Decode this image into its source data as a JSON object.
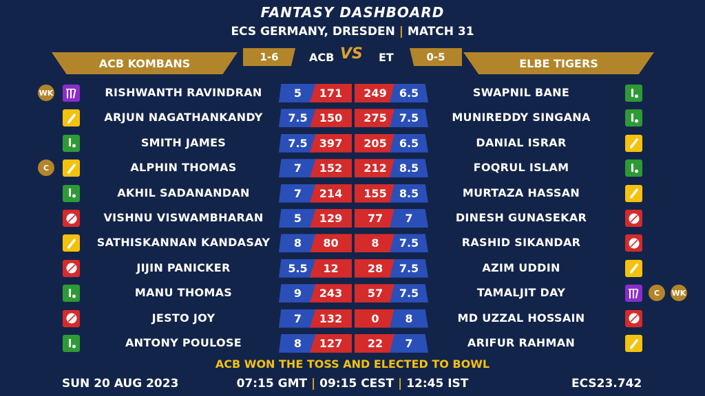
{
  "header": {
    "title": "FANTASY DASHBOARD",
    "subtitle_left": "ECS GERMANY, DRESDEN",
    "subtitle_sep": "|",
    "subtitle_right": "MATCH 31"
  },
  "teams": {
    "left": {
      "name": "ACB KOMBANS",
      "abbr": "ACB",
      "record": "1-6"
    },
    "right": {
      "name": "ELBE TIGERS",
      "abbr": "ET",
      "record": "0-5"
    },
    "vs": "VS"
  },
  "left_players": [
    {
      "name": "RISHWANTH RAVINDRAN",
      "credit": "5",
      "points": "171",
      "role": "wk-icon",
      "badges": [
        "WK"
      ]
    },
    {
      "name": "ARJUN NAGATHANKANDY",
      "credit": "7.5",
      "points": "150",
      "role": "bat-icon",
      "badges": []
    },
    {
      "name": "SMITH JAMES",
      "credit": "7.5",
      "points": "397",
      "role": "allrounder-icon",
      "badges": []
    },
    {
      "name": "ALPHIN THOMAS",
      "credit": "7",
      "points": "152",
      "role": "bat-icon",
      "badges": [
        "C"
      ]
    },
    {
      "name": "AKHIL SADANANDAN",
      "credit": "7",
      "points": "214",
      "role": "allrounder-icon",
      "badges": []
    },
    {
      "name": "VISHNU VISWAMBHARAN",
      "credit": "5",
      "points": "129",
      "role": "bowl-icon",
      "badges": []
    },
    {
      "name": "SATHISKANNAN KANDASAY",
      "credit": "8",
      "points": "80",
      "role": "bat-icon",
      "badges": []
    },
    {
      "name": "JIJIN PANICKER",
      "credit": "5.5",
      "points": "12",
      "role": "bowl-icon",
      "badges": []
    },
    {
      "name": "MANU THOMAS",
      "credit": "9",
      "points": "243",
      "role": "allrounder-icon",
      "badges": []
    },
    {
      "name": "JESTO JOY",
      "credit": "7",
      "points": "132",
      "role": "bowl-icon",
      "badges": []
    },
    {
      "name": "ANTONY POULOSE",
      "credit": "8",
      "points": "127",
      "role": "allrounder-icon",
      "badges": []
    }
  ],
  "right_players": [
    {
      "name": "SWAPNIL BANE",
      "points": "249",
      "credit": "6.5",
      "role": "allrounder-icon",
      "badges": []
    },
    {
      "name": "MUNIREDDY SINGANA",
      "points": "275",
      "credit": "7.5",
      "role": "allrounder-icon",
      "badges": []
    },
    {
      "name": "DANIAL ISRAR",
      "points": "205",
      "credit": "6.5",
      "role": "bat-icon",
      "badges": []
    },
    {
      "name": "FOQRUL ISLAM",
      "points": "212",
      "credit": "8.5",
      "role": "allrounder-icon",
      "badges": []
    },
    {
      "name": "MURTAZA HASSAN",
      "points": "155",
      "credit": "8.5",
      "role": "bat-icon",
      "badges": []
    },
    {
      "name": "DINESH GUNASEKAR",
      "points": "77",
      "credit": "7",
      "role": "bowl-icon",
      "badges": []
    },
    {
      "name": "RASHID SIKANDAR",
      "points": "8",
      "credit": "7.5",
      "role": "bowl-icon",
      "badges": []
    },
    {
      "name": "AZIM UDDIN",
      "points": "28",
      "credit": "7.5",
      "role": "bat-icon",
      "badges": []
    },
    {
      "name": "TAMALJIT DAY",
      "points": "57",
      "credit": "7.5",
      "role": "wk-icon",
      "badges": [
        "C",
        "WK"
      ]
    },
    {
      "name": "MD UZZAL HOSSAIN",
      "points": "0",
      "credit": "8",
      "role": "bowl-icon",
      "badges": []
    },
    {
      "name": "ARIFUR RAHMAN",
      "points": "22",
      "credit": "7",
      "role": "bat-icon",
      "badges": []
    }
  ],
  "toss": "ACB WON THE TOSS AND ELECTED TO BOWL",
  "footer": {
    "date": "SUN 20 AUG 2023",
    "time_gmt": "07:15 GMT",
    "time_cest": "09:15 CEST",
    "time_ist": "12:45 IST",
    "sep": "|",
    "code": "ECS23.742"
  }
}
